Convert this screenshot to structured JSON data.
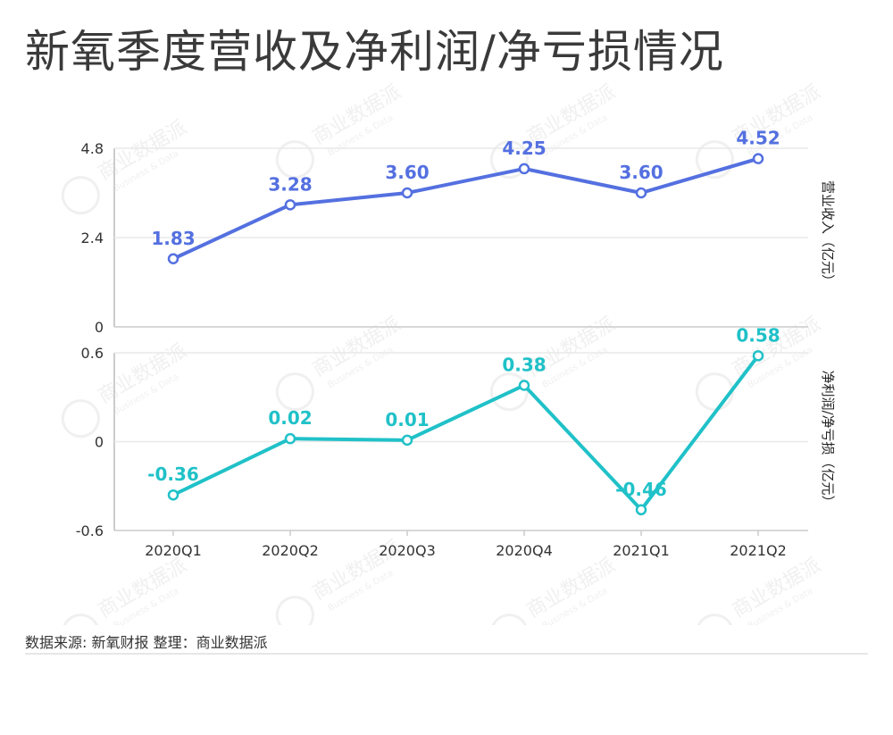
{
  "title": "新氧季度营收及净利润/净亏损情况",
  "source": "数据来源: 新氧财报  整理：商业数据派",
  "watermark": {
    "cn": "商业数据派",
    "en": "Business & Data"
  },
  "colors": {
    "revenue": "#5470e0",
    "profit": "#20c1c8",
    "axis": "#333333",
    "grid": "#e9e9e9"
  },
  "chart_data": [
    {
      "type": "line",
      "categories": [
        "2020Q1",
        "2020Q2",
        "2020Q3",
        "2020Q4",
        "2021Q1",
        "2021Q2"
      ],
      "series": [
        {
          "name": "营业收入（亿元）",
          "values": [
            1.83,
            3.28,
            3.6,
            4.25,
            3.6,
            4.52
          ]
        }
      ],
      "ylim": [
        0,
        4.8
      ],
      "yticks": [
        "0",
        "2.4",
        "4.8"
      ],
      "ylabel": "营业收入（亿元）",
      "data_labels": [
        "1.83",
        "3.28",
        "3.60",
        "4.25",
        "3.60",
        "4.52"
      ]
    },
    {
      "type": "line",
      "categories": [
        "2020Q1",
        "2020Q2",
        "2020Q3",
        "2020Q4",
        "2021Q1",
        "2021Q2"
      ],
      "series": [
        {
          "name": "净利润/净亏损（亿元）",
          "values": [
            -0.36,
            0.02,
            0.01,
            0.38,
            -0.46,
            0.58
          ]
        }
      ],
      "ylim": [
        -0.6,
        0.6
      ],
      "yticks": [
        "-0.6",
        "0",
        "0.6"
      ],
      "ylabel": "净利润/净亏损（亿元）",
      "data_labels": [
        "-0.36",
        "0.02",
        "0.01",
        "0.38",
        "-0.46",
        "0.58"
      ]
    }
  ]
}
